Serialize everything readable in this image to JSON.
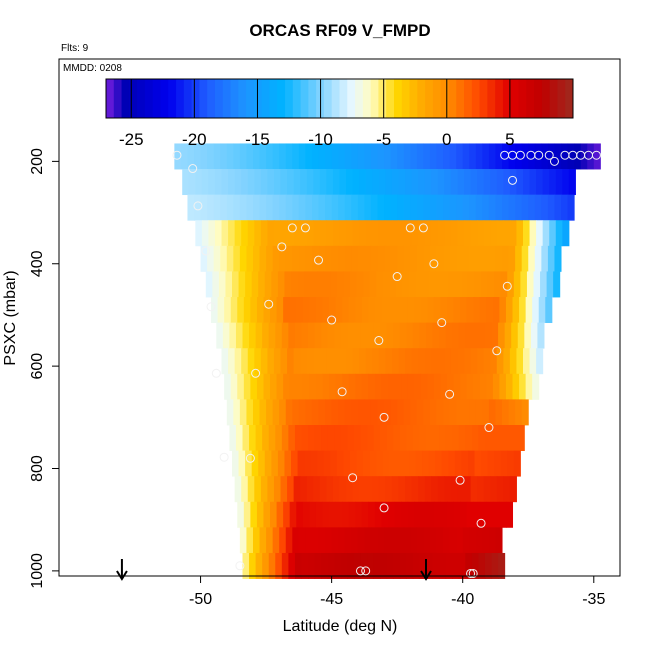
{
  "chart_data": {
    "type": "heatmap",
    "title": "ORCAS RF09 V_FMPD",
    "corner_note": "Flts: 9",
    "inset_note": "MMDD: 0208",
    "xlabel": "Latitude (deg N)",
    "ylabel": "PSXC (mbar)",
    "xlim": [
      -55.4,
      -34.0
    ],
    "ylim": [
      1010,
      0
    ],
    "x_ticks": [
      -50,
      -45,
      -40,
      -35
    ],
    "y_ticks": [
      200,
      400,
      600,
      800,
      1000
    ],
    "colorbar": {
      "range": [
        -27,
        10
      ],
      "ticks": [
        -25,
        -20,
        -15,
        -10,
        -5,
        0,
        5
      ],
      "major_divisions": [
        -25,
        -20,
        -15,
        -10,
        -5,
        0,
        5
      ],
      "stops": [
        {
          "v": -27,
          "c": "#7a1fe0"
        },
        {
          "v": -25.5,
          "c": "#0000b4"
        },
        {
          "v": -22,
          "c": "#0000ee"
        },
        {
          "v": -19,
          "c": "#1f5cff"
        },
        {
          "v": -16,
          "c": "#1d94ff"
        },
        {
          "v": -13,
          "c": "#00b2ff"
        },
        {
          "v": -10,
          "c": "#80d2ff"
        },
        {
          "v": -7.5,
          "c": "#e8f8ff"
        },
        {
          "v": -6,
          "c": "#fffcc0"
        },
        {
          "v": -4,
          "c": "#ffd700"
        },
        {
          "v": -2,
          "c": "#ffab00"
        },
        {
          "v": 0,
          "c": "#ff8e00"
        },
        {
          "v": 2.5,
          "c": "#ff4a00"
        },
        {
          "v": 5,
          "c": "#e00000"
        },
        {
          "v": 7.5,
          "c": "#c00000"
        },
        {
          "v": 10,
          "c": "#9e2a1f"
        }
      ]
    },
    "grid": false,
    "rows": [
      {
        "p": 190,
        "xmin": -51.0,
        "xmax": -34.9,
        "core": null,
        "west": -9.5,
        "east": -26.5
      },
      {
        "p": 240,
        "xmin": -50.7,
        "xmax": -35.7,
        "core": null,
        "west": -9.0,
        "east": -22.0
      },
      {
        "p": 290,
        "xmin": -50.5,
        "xmax": -35.9,
        "core": null,
        "west": -8.5,
        "east": -20.0
      },
      {
        "p": 340,
        "xmin": -50.2,
        "xmax": -36.1,
        "core": -1.0,
        "west": -8.0,
        "east": -14.0
      },
      {
        "p": 390,
        "xmin": -50.0,
        "xmax": -36.3,
        "core": -0.5,
        "west": -8.0,
        "east": -13.0
      },
      {
        "p": 440,
        "xmin": -49.8,
        "xmax": -36.5,
        "core": 0.0,
        "west": -8.0,
        "east": -12.0
      },
      {
        "p": 490,
        "xmin": -49.6,
        "xmax": -36.7,
        "core": 0.5,
        "west": -7.5,
        "east": -11.0
      },
      {
        "p": 540,
        "xmin": -49.4,
        "xmax": -36.9,
        "core": 0.5,
        "west": -7.5,
        "east": -9.5
      },
      {
        "p": 590,
        "xmin": -49.2,
        "xmax": -37.1,
        "core": 0.5,
        "west": -7.5,
        "east": -8.0
      },
      {
        "p": 640,
        "xmin": -49.1,
        "xmax": -37.3,
        "core": 1.0,
        "west": -7.5,
        "east": -6.5
      },
      {
        "p": 690,
        "xmin": -49.0,
        "xmax": -37.5,
        "core": 1.5,
        "west": -7.5,
        "east": 0.0
      },
      {
        "p": 740,
        "xmin": -48.9,
        "xmax": -37.7,
        "core": 2.0,
        "west": -7.5,
        "east": 2.0
      },
      {
        "p": 790,
        "xmin": -48.8,
        "xmax": -37.9,
        "core": 2.5,
        "west": -7.5,
        "east": 3.0
      },
      {
        "p": 840,
        "xmin": -48.7,
        "xmax": -38.1,
        "core": 3.5,
        "west": -7.5,
        "east": 4.0
      },
      {
        "p": 890,
        "xmin": -48.6,
        "xmax": -38.3,
        "core": 5.0,
        "west": -7.5,
        "east": 5.0
      },
      {
        "p": 940,
        "xmin": -48.5,
        "xmax": -38.5,
        "core": 6.0,
        "west": -7.0,
        "east": 6.5
      },
      {
        "p": 990,
        "xmin": -48.4,
        "xmax": -38.6,
        "core": 7.0,
        "west": -6.0,
        "east": 9.0
      }
    ],
    "points": [
      {
        "x": -50.9,
        "p": 188
      },
      {
        "x": -50.3,
        "p": 214
      },
      {
        "x": -50.1,
        "p": 287
      },
      {
        "x": -49.8,
        "p": 375
      },
      {
        "x": -49.6,
        "p": 484
      },
      {
        "x": -49.4,
        "p": 614
      },
      {
        "x": -49.1,
        "p": 778
      },
      {
        "x": -48.5,
        "p": 990
      },
      {
        "x": -48.1,
        "p": 780
      },
      {
        "x": -47.9,
        "p": 614
      },
      {
        "x": -47.4,
        "p": 479
      },
      {
        "x": -46.9,
        "p": 367
      },
      {
        "x": -46.5,
        "p": 330
      },
      {
        "x": -46.0,
        "p": 330
      },
      {
        "x": -45.5,
        "p": 393
      },
      {
        "x": -45.0,
        "p": 510
      },
      {
        "x": -44.6,
        "p": 650
      },
      {
        "x": -44.2,
        "p": 818
      },
      {
        "x": -43.9,
        "p": 1000
      },
      {
        "x": -43.7,
        "p": 1000
      },
      {
        "x": -43.2,
        "p": 550
      },
      {
        "x": -43.0,
        "p": 700
      },
      {
        "x": -43.0,
        "p": 877
      },
      {
        "x": -42.5,
        "p": 425
      },
      {
        "x": -42.0,
        "p": 330
      },
      {
        "x": -41.5,
        "p": 330
      },
      {
        "x": -41.1,
        "p": 400
      },
      {
        "x": -40.8,
        "p": 515
      },
      {
        "x": -40.5,
        "p": 655
      },
      {
        "x": -40.1,
        "p": 823
      },
      {
        "x": -39.7,
        "p": 1005
      },
      {
        "x": -39.6,
        "p": 1005
      },
      {
        "x": -39.3,
        "p": 907
      },
      {
        "x": -39.0,
        "p": 720
      },
      {
        "x": -38.7,
        "p": 570
      },
      {
        "x": -38.3,
        "p": 444
      },
      {
        "x": -38.4,
        "p": 188
      },
      {
        "x": -38.1,
        "p": 188
      },
      {
        "x": -37.8,
        "p": 188
      },
      {
        "x": -37.4,
        "p": 188
      },
      {
        "x": -37.1,
        "p": 188
      },
      {
        "x": -36.7,
        "p": 188
      },
      {
        "x": -36.5,
        "p": 200
      },
      {
        "x": -36.1,
        "p": 188
      },
      {
        "x": -35.8,
        "p": 188
      },
      {
        "x": -35.5,
        "p": 188
      },
      {
        "x": -35.2,
        "p": 188
      },
      {
        "x": -34.9,
        "p": 188
      },
      {
        "x": -38.1,
        "p": 237
      }
    ],
    "arrows": [
      {
        "x": -53.0,
        "p": 1010
      },
      {
        "x": -41.4,
        "p": 1010
      }
    ]
  }
}
